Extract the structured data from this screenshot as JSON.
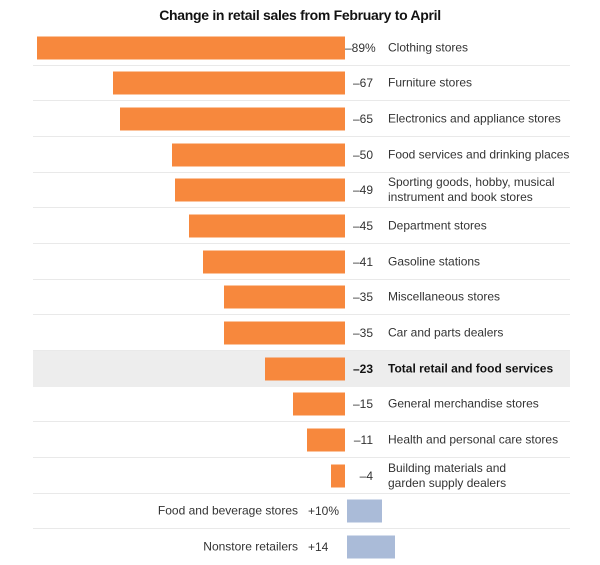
{
  "title": "Change in retail sales from February to April",
  "colors": {
    "negative_bar": "#F7883D",
    "positive_bar": "#AABBD8",
    "highlight_band": "#EDEDED",
    "separator": "#E9E9E9",
    "label_text": "#333333",
    "title_text": "#121212"
  },
  "chart_data": {
    "type": "bar",
    "orientation": "horizontal",
    "title": "Change in retail sales from February to April",
    "value_unit": "percent change, February to April",
    "xlim": [
      -89,
      14
    ],
    "grid": false,
    "legend": null,
    "highlighted_category": "Total retail and food services",
    "rows": [
      {
        "category": "Clothing stores",
        "value": -89,
        "display": "–89%",
        "highlight": false
      },
      {
        "category": "Furniture stores",
        "value": -67,
        "display": "–67",
        "highlight": false
      },
      {
        "category": "Electronics and appliance stores",
        "value": -65,
        "display": "–65",
        "highlight": false
      },
      {
        "category": "Food services and drinking places",
        "value": -50,
        "display": "–50",
        "highlight": false
      },
      {
        "category": "Sporting goods, hobby, musical instrument and book stores",
        "category_display": "Sporting goods, hobby, musical\ninstrument and book stores",
        "value": -49,
        "display": "–49",
        "highlight": false
      },
      {
        "category": "Department stores",
        "value": -45,
        "display": "–45",
        "highlight": false
      },
      {
        "category": "Gasoline stations",
        "value": -41,
        "display": "–41",
        "highlight": false
      },
      {
        "category": "Miscellaneous stores",
        "value": -35,
        "display": "–35",
        "highlight": false
      },
      {
        "category": "Car and parts dealers",
        "value": -35,
        "display": "–35",
        "highlight": false
      },
      {
        "category": "Total retail and food services",
        "value": -23,
        "display": "–23",
        "highlight": true
      },
      {
        "category": "General merchandise stores",
        "value": -15,
        "display": "–15",
        "highlight": false
      },
      {
        "category": "Health and personal care stores",
        "value": -11,
        "display": "–11",
        "highlight": false
      },
      {
        "category": "Building materials and garden supply dealers",
        "category_display": "Building materials and\ngarden supply dealers",
        "value": -4,
        "display": "–4",
        "highlight": false
      },
      {
        "category": "Food and beverage stores",
        "value": 10,
        "display": "+10%",
        "highlight": false
      },
      {
        "category": "Nonstore retailers",
        "value": 14,
        "display": "+14",
        "highlight": false
      }
    ]
  }
}
